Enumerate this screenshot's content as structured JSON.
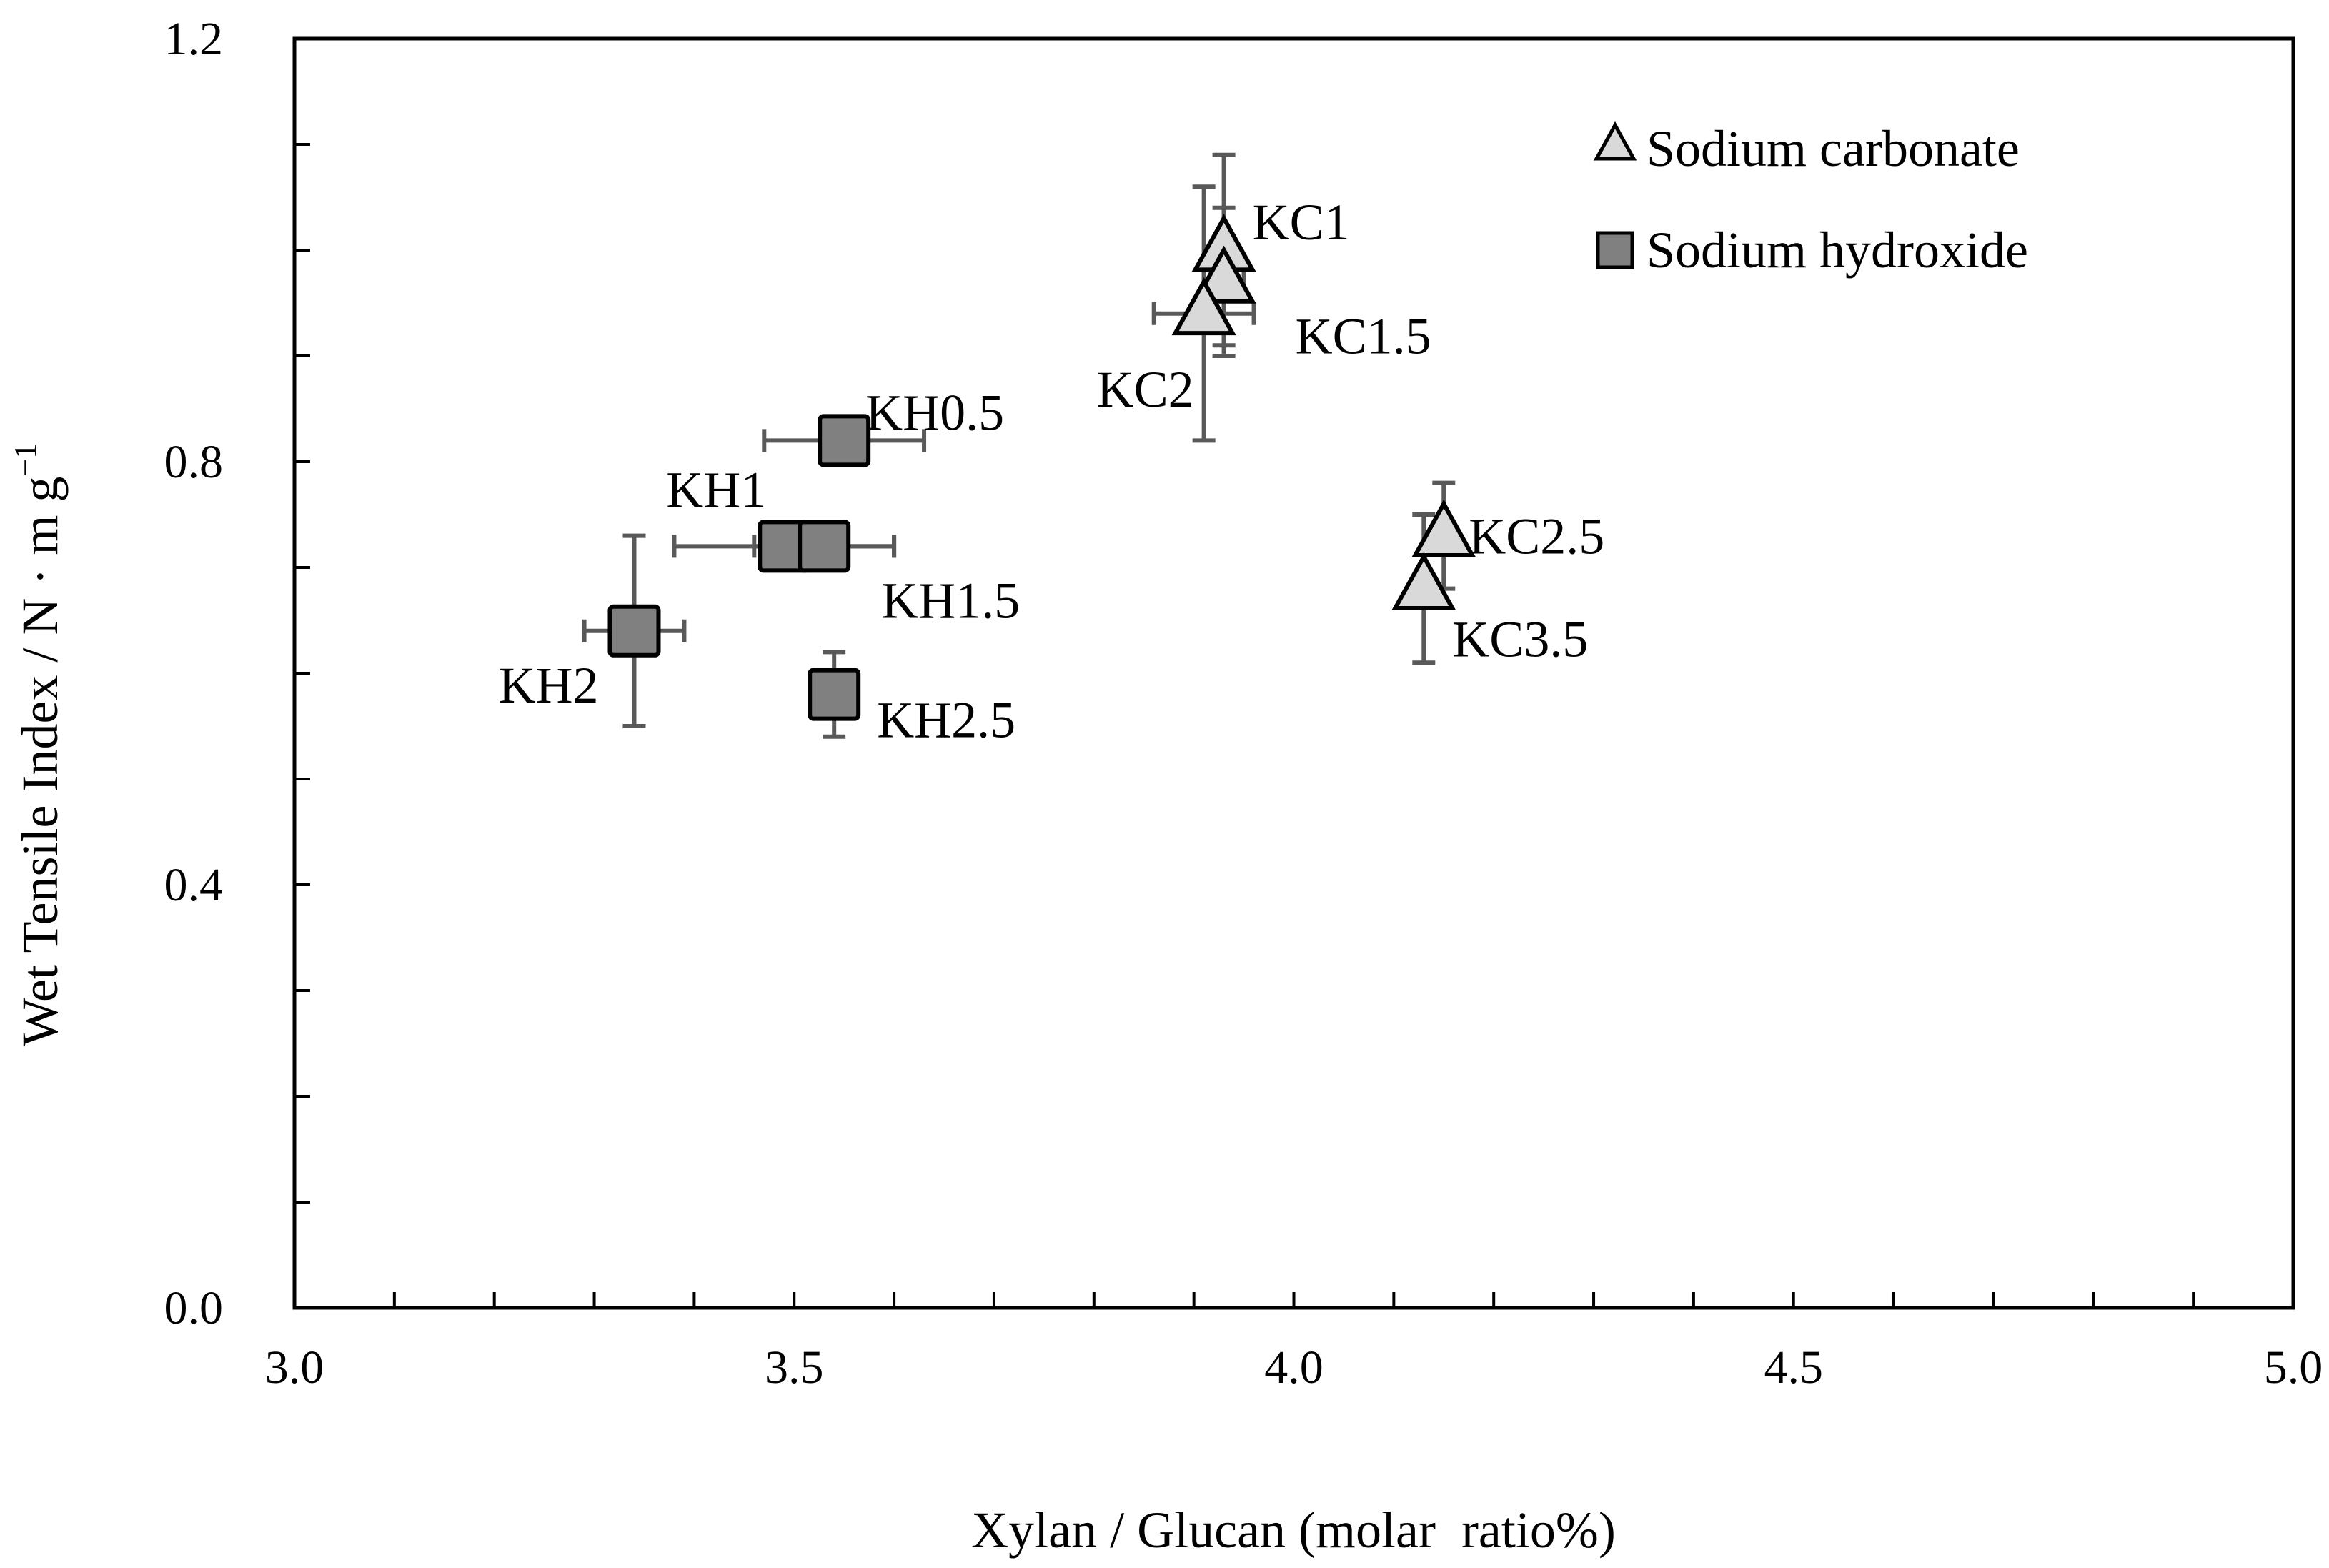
{
  "chart_data": {
    "type": "scatter",
    "title": "",
    "xlabel": "Xylan / Glucan (molar  ratio%)",
    "ylabel": {
      "main": "Wet Tensile Index / N · m g",
      "superscript": "−1"
    },
    "xlim": [
      3.0,
      5.0
    ],
    "ylim": [
      0.0,
      1.2
    ],
    "x_ticks": [
      3.0,
      3.1,
      3.2,
      3.3,
      3.4,
      3.5,
      3.6,
      3.7,
      3.8,
      3.9,
      4.0,
      4.1,
      4.2,
      4.3,
      4.4,
      4.5,
      4.6,
      4.7,
      4.8,
      4.9,
      5.0
    ],
    "x_tick_labels": [
      "3.0",
      "3.5",
      "4.0",
      "4.5",
      "5.0"
    ],
    "y_ticks": [
      0.0,
      0.1,
      0.2,
      0.3,
      0.4,
      0.5,
      0.6,
      0.7,
      0.8,
      0.9,
      1.0,
      1.1,
      1.2
    ],
    "y_tick_labels": [
      "0.0",
      "0.4",
      "0.8",
      "1.2"
    ],
    "grid": false,
    "legend_position": "top-right",
    "series": [
      {
        "name": "Sodium carbonate",
        "marker": "triangle",
        "color": "#d9d9d9",
        "points": [
          {
            "label": "KC1",
            "x": 3.93,
            "y": 1.0,
            "xerr": 0.0,
            "yerr": 0.09
          },
          {
            "label": "KC1.5",
            "x": 3.93,
            "y": 0.97,
            "xerr": 0.02,
            "yerr": 0.07
          },
          {
            "label": "KC2",
            "x": 3.91,
            "y": 0.94,
            "xerr": 0.05,
            "yerr": 0.12
          },
          {
            "label": "KC2.5",
            "x": 4.15,
            "y": 0.73,
            "xerr": 0.0,
            "yerr": 0.05
          },
          {
            "label": "KC3.5",
            "x": 4.13,
            "y": 0.68,
            "xerr": 0.0,
            "yerr": 0.07
          }
        ]
      },
      {
        "name": "Sodium hydroxide",
        "marker": "square",
        "color": "#808080",
        "points": [
          {
            "label": "KH0.5",
            "x": 3.55,
            "y": 0.82,
            "xerr": 0.08,
            "yerr": 0.0
          },
          {
            "label": "KH1",
            "x": 3.49,
            "y": 0.72,
            "xerr": 0.11,
            "yerr": 0.0
          },
          {
            "label": "KH1.5",
            "x": 3.53,
            "y": 0.72,
            "xerr": 0.07,
            "yerr": 0.0
          },
          {
            "label": "KH2",
            "x": 3.34,
            "y": 0.64,
            "xerr": 0.05,
            "yerr": 0.09
          },
          {
            "label": "KH2.5",
            "x": 3.54,
            "y": 0.58,
            "xerr": 0.0,
            "yerr": 0.04
          }
        ]
      }
    ]
  },
  "colors": {
    "axis": "#000000",
    "error_bar": "#595959",
    "marker_edge": "#000000"
  }
}
